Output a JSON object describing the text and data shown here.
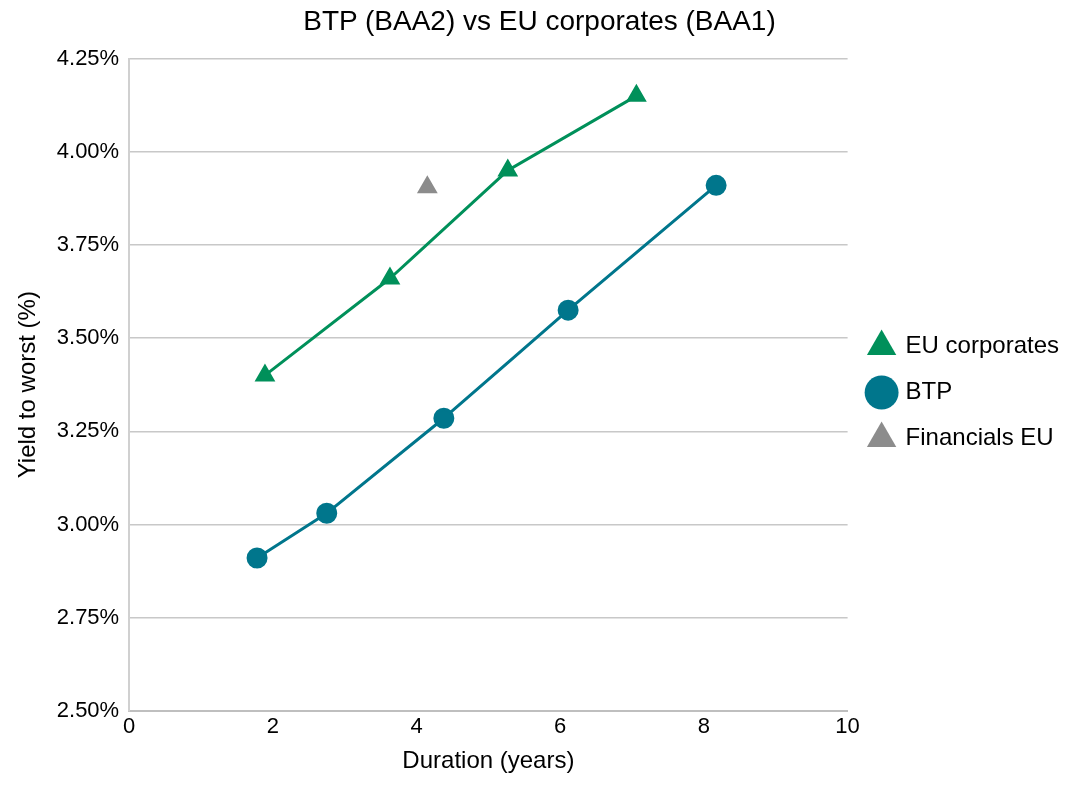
{
  "chart_data": {
    "type": "line",
    "title": "BTP (BAA2) vs EU corporates (BAA1)",
    "xlabel": "Duration (years)",
    "ylabel": "Yield to worst (%)",
    "xlim": [
      0,
      10
    ],
    "xticks": [
      0,
      2,
      4,
      6,
      8,
      10
    ],
    "ylim": [
      2.5,
      4.25
    ],
    "yticks": [
      {
        "value": 2.5,
        "label": "2.50%"
      },
      {
        "value": 2.75,
        "label": "2.75%"
      },
      {
        "value": 3,
        "label": "3.00%"
      },
      {
        "value": 3.25,
        "label": "3.25%"
      },
      {
        "value": 3.5,
        "label": "3.50%"
      },
      {
        "value": 3.75,
        "label": "3.75%"
      },
      {
        "value": 4,
        "label": "4.00%"
      },
      {
        "value": 4.25,
        "label": "4.25%"
      }
    ],
    "grid": "y",
    "legend": "right",
    "series": [
      {
        "name": "EU corporates",
        "color": "#00905a",
        "marker": "triangle",
        "x": [
          1.89,
          3.63,
          5.27,
          7.06
        ],
        "values": [
          3.4,
          3.66,
          3.95,
          4.15
        ]
      },
      {
        "name": "BTP",
        "color": "#00768c",
        "marker": "circle",
        "x": [
          1.78,
          2.75,
          4.38,
          6.11,
          8.17
        ],
        "values": [
          2.91,
          3.03,
          3.285,
          3.575,
          3.91
        ]
      },
      {
        "name": "Financials EU",
        "type": "scatter",
        "color": "#8c8c8c",
        "marker": "triangle",
        "x": [
          4.15
        ],
        "values": [
          3.905
        ]
      }
    ]
  }
}
